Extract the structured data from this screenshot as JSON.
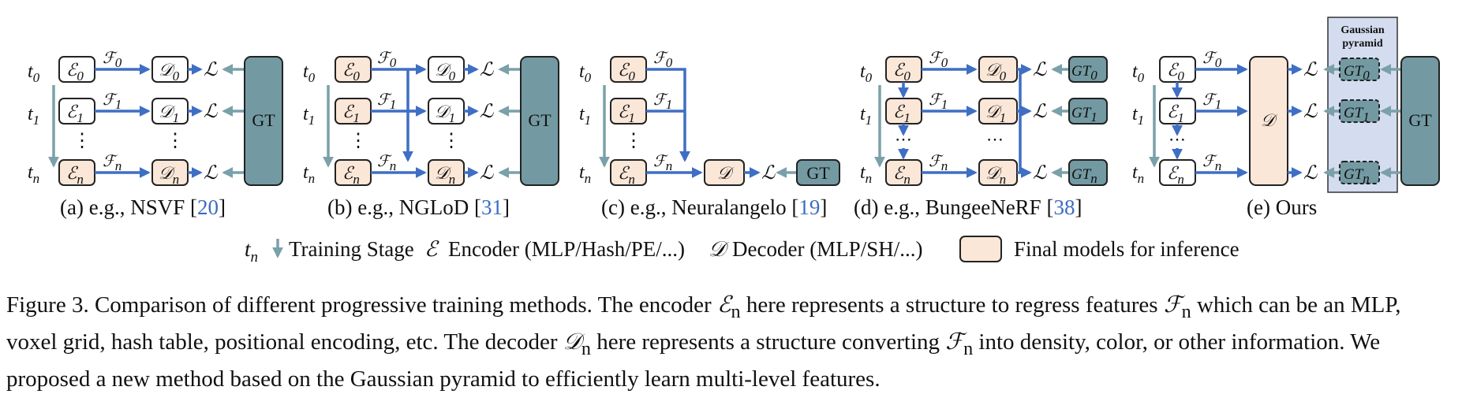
{
  "panels": [
    {
      "id": "a",
      "caption": "(a) e.g., NSVF [",
      "ref": "20",
      "close": "]"
    },
    {
      "id": "b",
      "caption": "(b) e.g., NGLoD [",
      "ref": "31",
      "close": "]"
    },
    {
      "id": "c",
      "caption": "(c) e.g., Neuralangelo [",
      "ref": "19",
      "close": "]"
    },
    {
      "id": "d",
      "caption": "(d) e.g., BungeeNeRF [",
      "ref": "38",
      "close": "]"
    },
    {
      "id": "e",
      "caption": "(e) Ours",
      "ref": "",
      "close": ""
    }
  ],
  "labels": {
    "t": "t",
    "sub0": "0",
    "sub1": "1",
    "subn": "n",
    "E": "ℰ",
    "D": "𝒟",
    "F": "ℱ",
    "L": "ℒ",
    "gt": "GT",
    "dots": "⋮",
    "hdots": "⋯",
    "gaussian_line1": "Gaussian",
    "gaussian_line2": "pyramid"
  },
  "legend": {
    "tn": "t",
    "tn_sub": "n",
    "training_stage": "Training Stage",
    "encoder_symbol": "ℰ",
    "encoder": "Encoder (MLP/Hash/PE/...)",
    "decoder_symbol": "𝒟",
    "decoder": "Decoder (MLP/SH/...)",
    "final_models": "Final models for inference"
  },
  "caption": {
    "lead": "Figure 3.",
    "text1": " Comparison of different progressive training methods. The encoder ",
    "En": "ℰ",
    "En_sub": "n",
    "text2": " here represents a structure to regress features ",
    "Fn": "ℱ",
    "Fn_sub": "n",
    "text3": " which can be an MLP, voxel grid, hash table, positional encoding, etc. The decoder ",
    "Dn": "𝒟",
    "Dn_sub": "n",
    "text4": " here represents a structure converting ",
    "Fn2": "ℱ",
    "Fn2_sub": "n",
    "text5": " into density, color, or other information. We proposed a new method based on the Gaussian pyramid to efficiently learn multi-level features."
  },
  "colors": {
    "encoder_final": "#fbe7d8",
    "gt": "#739aa2",
    "arrow_blue": "#3f6fc4",
    "arrow_grey": "#7aa1a9",
    "pyramid_bg": "#d4dcef"
  }
}
